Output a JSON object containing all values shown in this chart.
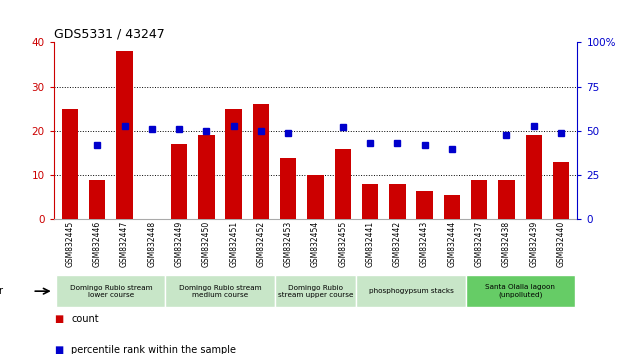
{
  "title": "GDS5331 / 43247",
  "categories": [
    "GSM832445",
    "GSM832446",
    "GSM832447",
    "GSM832448",
    "GSM832449",
    "GSM832450",
    "GSM832451",
    "GSM832452",
    "GSM832453",
    "GSM832454",
    "GSM832455",
    "GSM832441",
    "GSM832442",
    "GSM832443",
    "GSM832444",
    "GSM832437",
    "GSM832438",
    "GSM832439",
    "GSM832440"
  ],
  "counts": [
    25,
    9,
    38,
    0,
    17,
    19,
    25,
    26,
    14,
    10,
    16,
    8,
    8,
    6.5,
    5.5,
    9,
    9,
    19,
    13
  ],
  "percentile_ranks": [
    null,
    42,
    53,
    51,
    51,
    50,
    53,
    50,
    49,
    null,
    52,
    43,
    43,
    42,
    40,
    null,
    48,
    53,
    49
  ],
  "bar_color": "#cc0000",
  "dot_color": "#0000cc",
  "groups": [
    {
      "label": "Domingo Rubio stream\nlower course",
      "start": 0,
      "end": 4,
      "color": "#c8e6c8"
    },
    {
      "label": "Domingo Rubio stream\nmedium course",
      "start": 4,
      "end": 8,
      "color": "#c8e6c8"
    },
    {
      "label": "Domingo Rubio\nstream upper course",
      "start": 8,
      "end": 11,
      "color": "#c8e6c8"
    },
    {
      "label": "phosphogypsum stacks",
      "start": 11,
      "end": 15,
      "color": "#c8e6c8"
    },
    {
      "label": "Santa Olalla lagoon\n(unpolluted)",
      "start": 15,
      "end": 19,
      "color": "#66cc66"
    }
  ],
  "ylim_left": [
    0,
    40
  ],
  "ylim_right": [
    0,
    100
  ],
  "yticks_left": [
    0,
    10,
    20,
    30,
    40
  ],
  "yticks_right": [
    0,
    25,
    50,
    75,
    100
  ],
  "ylabel_left_color": "#cc0000",
  "ylabel_right_color": "#0000cc",
  "legend_items": [
    {
      "label": "count",
      "color": "#cc0000",
      "marker": "s"
    },
    {
      "label": "percentile rank within the sample",
      "color": "#0000cc",
      "marker": "s"
    }
  ],
  "plot_bg": "#ffffff",
  "xtick_bg": "#d8d8d8"
}
